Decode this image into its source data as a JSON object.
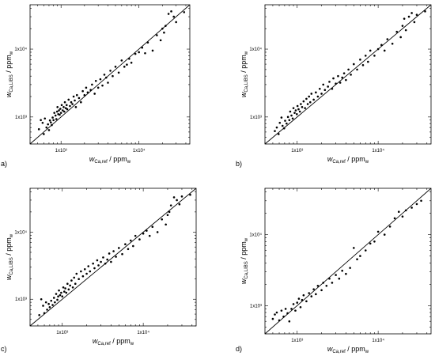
{
  "chart_data": [
    {
      "type": "scatter",
      "panel_label": "a)",
      "title": "",
      "xlabel": {
        "main": "w",
        "sub": "Ca,ref",
        "unit": " / ppm",
        "unit_sub": "w"
      },
      "ylabel": {
        "main": "w",
        "sub": "Ca,LIBS",
        "unit": " / ppm",
        "unit_sub": "w"
      },
      "xscale": "log",
      "yscale": "log",
      "xlim": [
        400,
        45000
      ],
      "ylim": [
        400,
        45000
      ],
      "xticks": [
        {
          "value": 1000,
          "label": "1x10³"
        },
        {
          "value": 10000,
          "label": "1x10⁴"
        }
      ],
      "yticks": [
        {
          "value": 1000,
          "label": "1x10³"
        },
        {
          "value": 10000,
          "label": "1x10⁴"
        }
      ],
      "reference_line": {
        "from": 400,
        "to": 45000
      },
      "grid": false,
      "points": [
        [
          520,
          660
        ],
        [
          550,
          900
        ],
        [
          580,
          820
        ],
        [
          600,
          560
        ],
        [
          620,
          950
        ],
        [
          650,
          700
        ],
        [
          680,
          780
        ],
        [
          700,
          640
        ],
        [
          720,
          890
        ],
        [
          740,
          830
        ],
        [
          760,
          760
        ],
        [
          780,
          980
        ],
        [
          800,
          900
        ],
        [
          820,
          1150
        ],
        [
          850,
          1050
        ],
        [
          870,
          930
        ],
        [
          890,
          1200
        ],
        [
          900,
          1400
        ],
        [
          920,
          1100
        ],
        [
          940,
          1250
        ],
        [
          960,
          1080
        ],
        [
          980,
          1320
        ],
        [
          1000,
          1150
        ],
        [
          1020,
          1500
        ],
        [
          1050,
          1250
        ],
        [
          1080,
          1400
        ],
        [
          1100,
          1200
        ],
        [
          1120,
          1650
        ],
        [
          1150,
          1350
        ],
        [
          1180,
          1500
        ],
        [
          1200,
          1300
        ],
        [
          1250,
          1800
        ],
        [
          1300,
          1450
        ],
        [
          1350,
          1650
        ],
        [
          1400,
          1550
        ],
        [
          1450,
          2000
        ],
        [
          1500,
          1750
        ],
        [
          1550,
          1400
        ],
        [
          1600,
          2100
        ],
        [
          1700,
          1900
        ],
        [
          1800,
          1650
        ],
        [
          1900,
          2400
        ],
        [
          2000,
          2100
        ],
        [
          2100,
          2700
        ],
        [
          2200,
          2300
        ],
        [
          2400,
          2500
        ],
        [
          2500,
          3000
        ],
        [
          2700,
          2200
        ],
        [
          2800,
          3400
        ],
        [
          3000,
          2700
        ],
        [
          3200,
          3600
        ],
        [
          3400,
          2900
        ],
        [
          3600,
          4200
        ],
        [
          3800,
          3800
        ],
        [
          4000,
          3200
        ],
        [
          4300,
          4800
        ],
        [
          4600,
          4000
        ],
        [
          5000,
          5500
        ],
        [
          5500,
          4500
        ],
        [
          6000,
          6800
        ],
        [
          6500,
          5500
        ],
        [
          7000,
          5900
        ],
        [
          7500,
          7200
        ],
        [
          8000,
          6300
        ],
        [
          9000,
          8500
        ],
        [
          10000,
          9000
        ],
        [
          11000,
          10500
        ],
        [
          12000,
          8700
        ],
        [
          13000,
          12500
        ],
        [
          15000,
          9500
        ],
        [
          17000,
          16000
        ],
        [
          19000,
          13500
        ],
        [
          20000,
          20000
        ],
        [
          21000,
          17500
        ],
        [
          22000,
          22000
        ],
        [
          24000,
          33000
        ],
        [
          26000,
          36000
        ],
        [
          28000,
          30000
        ],
        [
          30000,
          25000
        ],
        [
          38000,
          35000
        ]
      ]
    },
    {
      "type": "scatter",
      "panel_label": "b)",
      "title": "",
      "xlabel": {
        "main": "w",
        "sub": "Ca,ref",
        "unit": " / ppm",
        "unit_sub": "w"
      },
      "ylabel": {
        "main": "w",
        "sub": "Ca,LIBS",
        "unit": " / ppm",
        "unit_sub": "w"
      },
      "xscale": "log",
      "yscale": "log",
      "xlim": [
        400,
        45000
      ],
      "ylim": [
        400,
        45000
      ],
      "xticks": [
        {
          "value": 1000,
          "label": "1x10³"
        },
        {
          "value": 10000,
          "label": "1x10⁴"
        }
      ],
      "yticks": [
        {
          "value": 1000,
          "label": "1x10³"
        },
        {
          "value": 10000,
          "label": "1x10⁴"
        }
      ],
      "reference_line": {
        "from": 400,
        "to": 45000
      },
      "grid": false,
      "points": [
        [
          530,
          620
        ],
        [
          560,
          700
        ],
        [
          590,
          560
        ],
        [
          610,
          820
        ],
        [
          640,
          980
        ],
        [
          660,
          740
        ],
        [
          690,
          680
        ],
        [
          710,
          880
        ],
        [
          740,
          800
        ],
        [
          770,
          1000
        ],
        [
          800,
          900
        ],
        [
          820,
          1200
        ],
        [
          850,
          1050
        ],
        [
          880,
          950
        ],
        [
          900,
          1350
        ],
        [
          930,
          1150
        ],
        [
          960,
          1250
        ],
        [
          990,
          1100
        ],
        [
          1010,
          1450
        ],
        [
          1040,
          1300
        ],
        [
          1080,
          1200
        ],
        [
          1110,
          1550
        ],
        [
          1150,
          1400
        ],
        [
          1200,
          1700
        ],
        [
          1250,
          1350
        ],
        [
          1300,
          1850
        ],
        [
          1350,
          1550
        ],
        [
          1400,
          2000
        ],
        [
          1450,
          1650
        ],
        [
          1500,
          2200
        ],
        [
          1600,
          1800
        ],
        [
          1700,
          2300
        ],
        [
          1800,
          2000
        ],
        [
          1900,
          2600
        ],
        [
          2000,
          2200
        ],
        [
          2100,
          3000
        ],
        [
          2200,
          2500
        ],
        [
          2400,
          2800
        ],
        [
          2500,
          3300
        ],
        [
          2700,
          2600
        ],
        [
          2800,
          3700
        ],
        [
          3000,
          3100
        ],
        [
          3200,
          4000
        ],
        [
          3400,
          3200
        ],
        [
          3600,
          3800
        ],
        [
          3800,
          4400
        ],
        [
          4000,
          3500
        ],
        [
          4300,
          5000
        ],
        [
          4600,
          4200
        ],
        [
          5000,
          6000
        ],
        [
          5500,
          5000
        ],
        [
          6000,
          7000
        ],
        [
          6500,
          5800
        ],
        [
          7000,
          8000
        ],
        [
          7500,
          6500
        ],
        [
          8000,
          9500
        ],
        [
          9000,
          8000
        ],
        [
          10000,
          10000
        ],
        [
          11000,
          11500
        ],
        [
          12000,
          9500
        ],
        [
          13000,
          14000
        ],
        [
          15000,
          12000
        ],
        [
          17000,
          18000
        ],
        [
          19000,
          15000
        ],
        [
          20000,
          22000
        ],
        [
          21000,
          28000
        ],
        [
          22000,
          19000
        ],
        [
          24000,
          30000
        ],
        [
          26000,
          34000
        ],
        [
          28000,
          25000
        ],
        [
          30000,
          32000
        ],
        [
          38000,
          36000
        ]
      ]
    },
    {
      "type": "scatter",
      "panel_label": "c)",
      "title": "",
      "xlabel": {
        "main": "w",
        "sub": "Ca,ref",
        "unit": " / ppm",
        "unit_sub": "w"
      },
      "ylabel": {
        "main": "w",
        "sub": "Ca,LIBS",
        "unit": " / ppm",
        "unit_sub": "w"
      },
      "xscale": "log",
      "yscale": "log",
      "xlim": [
        400,
        45000
      ],
      "ylim": [
        400,
        45000
      ],
      "xticks": [
        {
          "value": 1000,
          "label": "1x10³"
        },
        {
          "value": 10000,
          "label": "1x10⁴"
        }
      ],
      "yticks": [
        {
          "value": 1000,
          "label": "1x10³"
        },
        {
          "value": 10000,
          "label": "1x10⁴"
        }
      ],
      "reference_line": {
        "from": 400,
        "to": 45000
      },
      "grid": false,
      "points": [
        [
          520,
          580
        ],
        [
          550,
          1000
        ],
        [
          580,
          800
        ],
        [
          600,
          620
        ],
        [
          630,
          900
        ],
        [
          650,
          700
        ],
        [
          680,
          850
        ],
        [
          700,
          760
        ],
        [
          730,
          950
        ],
        [
          760,
          820
        ],
        [
          790,
          1050
        ],
        [
          810,
          900
        ],
        [
          840,
          1200
        ],
        [
          870,
          980
        ],
        [
          890,
          1100
        ],
        [
          910,
          1350
        ],
        [
          940,
          1150
        ],
        [
          970,
          1250
        ],
        [
          1000,
          1100
        ],
        [
          1030,
          1500
        ],
        [
          1060,
          1300
        ],
        [
          1090,
          1450
        ],
        [
          1120,
          1250
        ],
        [
          1160,
          1700
        ],
        [
          1200,
          1400
        ],
        [
          1250,
          1600
        ],
        [
          1300,
          1900
        ],
        [
          1350,
          1500
        ],
        [
          1400,
          2100
        ],
        [
          1450,
          1700
        ],
        [
          1500,
          2400
        ],
        [
          1600,
          2000
        ],
        [
          1700,
          2600
        ],
        [
          1800,
          2200
        ],
        [
          1900,
          2800
        ],
        [
          2000,
          2400
        ],
        [
          2100,
          3100
        ],
        [
          2200,
          2600
        ],
        [
          2400,
          3400
        ],
        [
          2500,
          2900
        ],
        [
          2700,
          3800
        ],
        [
          2800,
          3200
        ],
        [
          3000,
          3600
        ],
        [
          3200,
          4200
        ],
        [
          3400,
          3400
        ],
        [
          3600,
          3900
        ],
        [
          3800,
          4800
        ],
        [
          4000,
          3600
        ],
        [
          4300,
          5200
        ],
        [
          4600,
          4300
        ],
        [
          5000,
          5800
        ],
        [
          5500,
          4700
        ],
        [
          6000,
          6600
        ],
        [
          6500,
          5600
        ],
        [
          7000,
          7500
        ],
        [
          7500,
          6200
        ],
        [
          8000,
          8800
        ],
        [
          9000,
          7800
        ],
        [
          10000,
          9500
        ],
        [
          11000,
          10500
        ],
        [
          12000,
          8800
        ],
        [
          13000,
          12000
        ],
        [
          15000,
          10000
        ],
        [
          17000,
          15500
        ],
        [
          19000,
          13000
        ],
        [
          20000,
          18000
        ],
        [
          21000,
          20000
        ],
        [
          22000,
          25000
        ],
        [
          24000,
          33000
        ],
        [
          26000,
          30000
        ],
        [
          28000,
          26000
        ],
        [
          30000,
          34000
        ],
        [
          38000,
          36000
        ]
      ]
    },
    {
      "type": "scatter",
      "panel_label": "d)",
      "title": "",
      "xlabel": {
        "main": "w",
        "sub": "Ca,ref",
        "unit": " / ppm",
        "unit_sub": "w"
      },
      "ylabel": {
        "main": "w",
        "sub": "Ca,LIBS",
        "unit": " / ppm",
        "unit_sub": "w"
      },
      "xscale": "log",
      "yscale": "log",
      "xlim": [
        400,
        45000
      ],
      "ylim": [
        400,
        45000
      ],
      "xticks": [
        {
          "value": 1000,
          "label": "1x10³"
        },
        {
          "value": 10000,
          "label": "1x10⁴"
        }
      ],
      "yticks": [
        {
          "value": 1000,
          "label": "1x10³"
        },
        {
          "value": 10000,
          "label": "1x10⁴"
        }
      ],
      "reference_line": {
        "from": 400,
        "to": 45000
      },
      "grid": false,
      "points": [
        [
          500,
          650
        ],
        [
          530,
          750
        ],
        [
          560,
          800
        ],
        [
          600,
          620
        ],
        [
          640,
          850
        ],
        [
          680,
          700
        ],
        [
          720,
          900
        ],
        [
          760,
          780
        ],
        [
          800,
          600
        ],
        [
          850,
          900
        ],
        [
          900,
          1050
        ],
        [
          950,
          850
        ],
        [
          1000,
          1100
        ],
        [
          1050,
          1250
        ],
        [
          1100,
          950
        ],
        [
          1150,
          1200
        ],
        [
          1200,
          1400
        ],
        [
          1300,
          1150
        ],
        [
          1400,
          1500
        ],
        [
          1500,
          1350
        ],
        [
          1600,
          1700
        ],
        [
          1700,
          1450
        ],
        [
          1800,
          1900
        ],
        [
          2000,
          1650
        ],
        [
          2100,
          2100
        ],
        [
          2300,
          1900
        ],
        [
          2500,
          2400
        ],
        [
          2700,
          2100
        ],
        [
          3000,
          2700
        ],
        [
          3300,
          2400
        ],
        [
          3600,
          3100
        ],
        [
          4000,
          2800
        ],
        [
          4500,
          3400
        ],
        [
          5000,
          6500
        ],
        [
          5500,
          4500
        ],
        [
          6000,
          5000
        ],
        [
          7000,
          6000
        ],
        [
          8000,
          7500
        ],
        [
          9000,
          8000
        ],
        [
          10000,
          11000
        ],
        [
          12000,
          10000
        ],
        [
          14000,
          13000
        ],
        [
          16000,
          17000
        ],
        [
          18000,
          21000
        ],
        [
          20000,
          18000
        ],
        [
          22000,
          22000
        ],
        [
          26000,
          24000
        ],
        [
          30000,
          27000
        ],
        [
          34000,
          30000
        ]
      ]
    }
  ]
}
